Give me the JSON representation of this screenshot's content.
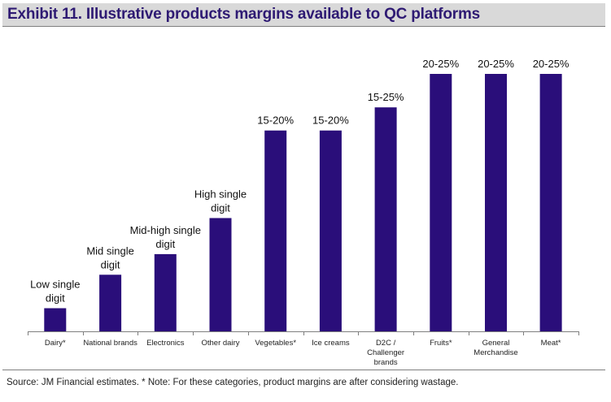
{
  "title": "Exhibit 11. Illustrative products margins available to QC platforms",
  "source_note": "Source: JM Financial estimates. * Note: For these categories, product margins are after considering wastage.",
  "colors": {
    "bar": "#2a0e7a",
    "title_text": "#2e1a73",
    "title_bg": "#d9d9d9",
    "axis": "#7f7f7f"
  },
  "chart_data": {
    "type": "bar",
    "title": "Exhibit 11. Illustrative products margins available to QC platforms",
    "xlabel": "",
    "ylabel": "",
    "categories": [
      "Dairy*",
      "National brands",
      "Electronics",
      "Other dairy",
      "Vegetables*",
      "Ice creams",
      "D2C / Challenger brands",
      "Fruits*",
      "General Merchandise",
      "Meat*"
    ],
    "category_labels": [
      [
        "Dairy*"
      ],
      [
        "National brands"
      ],
      [
        "Electronics"
      ],
      [
        "Other dairy"
      ],
      [
        "Vegetables*"
      ],
      [
        "Ice creams"
      ],
      [
        "D2C /",
        "Challenger",
        "brands"
      ],
      [
        "Fruits*"
      ],
      [
        "General",
        "Merchandise"
      ],
      [
        "Meat*"
      ]
    ],
    "values": [
      9,
      22,
      30,
      44,
      78,
      78,
      87,
      100,
      100,
      100
    ],
    "data_labels": [
      [
        "Low single",
        "digit"
      ],
      [
        "Mid single",
        "digit"
      ],
      [
        "Mid-high single",
        "digit"
      ],
      [
        "High single",
        "digit"
      ],
      [
        "15-20%"
      ],
      [
        "15-20%"
      ],
      [
        "15-25%"
      ],
      [
        "20-25%"
      ],
      [
        "20-25%"
      ],
      [
        "20-25%"
      ]
    ],
    "ylim": [
      0,
      100
    ],
    "grid": false,
    "legend": "none"
  }
}
